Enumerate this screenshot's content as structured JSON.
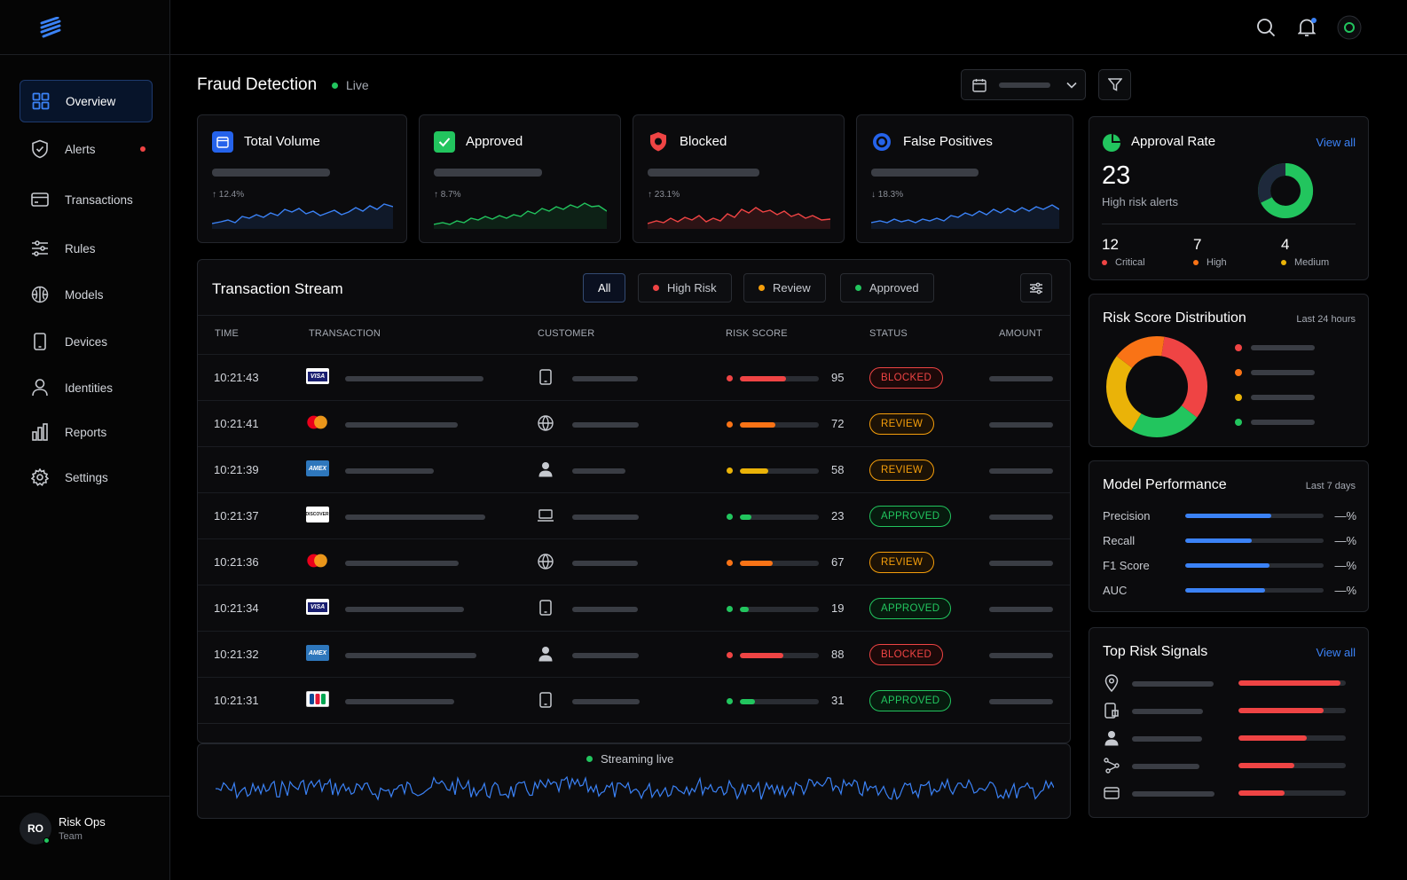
{
  "sidebar": {
    "items": [
      {
        "label": "Overview",
        "icon": "grid-icon",
        "active": true
      },
      {
        "label": "Alerts",
        "icon": "shield-icon",
        "badge": true
      },
      {
        "label": "Transactions",
        "icon": "credit-card-icon"
      },
      {
        "label": "Rules",
        "icon": "sliders-icon"
      },
      {
        "label": "Models",
        "icon": "brain-icon"
      },
      {
        "label": "Devices",
        "icon": "smartphone-icon"
      },
      {
        "label": "Identities",
        "icon": "user-icon"
      },
      {
        "label": "Reports",
        "icon": "bar-chart-icon"
      },
      {
        "label": "Settings",
        "icon": "gear-icon"
      }
    ],
    "user": {
      "initials": "RO",
      "name": "Risk Ops",
      "team": "Team"
    }
  },
  "header": {
    "title": "Fraud Detection",
    "status": "Live"
  },
  "stats": [
    {
      "title": "Total Volume",
      "change": "↑ 12.4%",
      "color": "#3b82f6"
    },
    {
      "title": "Approved",
      "change": "↑ 8.7%",
      "color": "#22c55e"
    },
    {
      "title": "Blocked",
      "change": "↑ 23.1%",
      "color": "#ef4444"
    },
    {
      "title": "False Positives",
      "change": "↓ 18.3%",
      "color": "#3b82f6"
    }
  ],
  "approval": {
    "title": "Approval Rate",
    "view_all": "View all",
    "value": "23",
    "label": "High risk alerts",
    "breakdown": [
      {
        "n": "12",
        "label": "Critical",
        "color": "#ef4444"
      },
      {
        "n": "7",
        "label": "High",
        "color": "#f97316"
      },
      {
        "n": "4",
        "label": "Medium",
        "color": "#eab308"
      }
    ]
  },
  "stream": {
    "title": "Transaction Stream",
    "filters": [
      {
        "label": "All",
        "active": true
      },
      {
        "label": "High Risk",
        "dot": "#ef4444"
      },
      {
        "label": "Review",
        "dot": "#f59e0b"
      },
      {
        "label": "Approved",
        "dot": "#22c55e"
      }
    ],
    "columns": [
      "TIME",
      "TRANSACTION",
      "CUSTOMER",
      "RISK SCORE",
      "STATUS",
      "AMOUNT"
    ],
    "rows": [
      {
        "time": "10:21:43",
        "card": "visa",
        "customer_icon": "smartphone-icon",
        "risk": 95,
        "status": "BLOCKED"
      },
      {
        "time": "10:21:41",
        "card": "mastercard",
        "customer_icon": "globe-icon",
        "risk": 72,
        "status": "REVIEW"
      },
      {
        "time": "10:21:39",
        "card": "amex",
        "customer_icon": "user-icon",
        "risk": 58,
        "status": "REVIEW"
      },
      {
        "time": "10:21:37",
        "card": "discover",
        "customer_icon": "laptop-icon",
        "risk": 23,
        "status": "APPROVED"
      },
      {
        "time": "10:21:36",
        "card": "mastercard",
        "customer_icon": "globe-icon",
        "risk": 67,
        "status": "REVIEW"
      },
      {
        "time": "10:21:34",
        "card": "visa",
        "customer_icon": "smartphone-icon",
        "risk": 19,
        "status": "APPROVED"
      },
      {
        "time": "10:21:32",
        "card": "amex",
        "customer_icon": "user-icon",
        "risk": 88,
        "status": "BLOCKED"
      },
      {
        "time": "10:21:31",
        "card": "jcb",
        "customer_icon": "smartphone-icon",
        "risk": 31,
        "status": "APPROVED"
      }
    ],
    "live_label": "Streaming live"
  },
  "risk_dist": {
    "title": "Risk Score Distribution",
    "subtitle": "Last 24 hours",
    "segments": [
      {
        "color": "#ef4444",
        "fraction": 0.33
      },
      {
        "color": "#22c55e",
        "fraction": 0.23
      },
      {
        "color": "#eab308",
        "fraction": 0.27
      },
      {
        "color": "#f97316",
        "fraction": 0.17
      }
    ]
  },
  "model_perf": {
    "title": "Model Performance",
    "subtitle": "Last 7 days",
    "metrics": [
      {
        "label": "Precision",
        "value": "—%",
        "level": 0.62
      },
      {
        "label": "Recall",
        "value": "—%",
        "level": 0.48
      },
      {
        "label": "F1 Score",
        "value": "—%",
        "level": 0.61
      },
      {
        "label": "AUC",
        "value": "—%",
        "level": 0.58
      }
    ]
  },
  "signals": {
    "title": "Top Risk Signals",
    "view_all": "View all",
    "items": [
      {
        "icon": "map-pin-icon",
        "level": 0.95
      },
      {
        "icon": "device-icon",
        "level": 0.79
      },
      {
        "icon": "user-icon",
        "level": 0.64
      },
      {
        "icon": "network-icon",
        "level": 0.52
      },
      {
        "icon": "credit-card-icon",
        "level": 0.43
      }
    ]
  },
  "colors": {
    "accent": "#3b82f6",
    "danger": "#ef4444",
    "warning": "#f59e0b",
    "success": "#22c55e"
  }
}
